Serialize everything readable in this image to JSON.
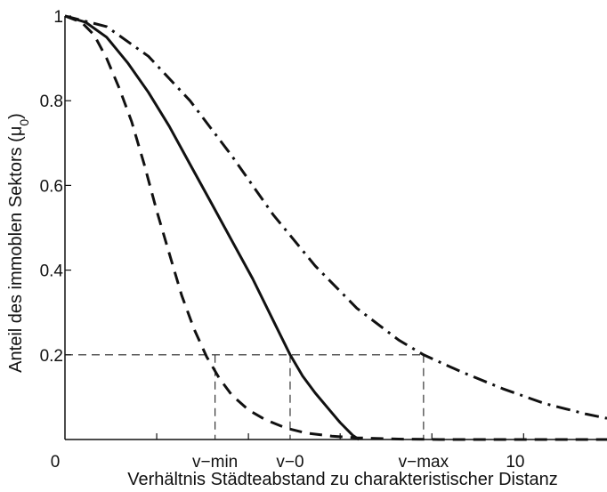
{
  "chart_data": {
    "type": "line",
    "title": "",
    "xlabel": "Verhältnis Städteabstand zu charakteristischer Distanz",
    "ylabel": "Anteil des immoblen Sektors (μ0)",
    "ylabel_main": "Anteil des immoblen Sektors (",
    "ylabel_symbol": "μ",
    "ylabel_sub": "0",
    "ylabel_close": ")",
    "xlim": [
      0,
      13
    ],
    "ylim": [
      0,
      1
    ],
    "grid": false,
    "legend": "none",
    "x_ticks": [
      {
        "x": 0,
        "label": "0"
      },
      {
        "x": 3.6,
        "label": "v−min"
      },
      {
        "x": 5.4,
        "label": "v−0"
      },
      {
        "x": 8.6,
        "label": "v−max"
      },
      {
        "x": 10.8,
        "label": "10"
      }
    ],
    "y_ticks": [
      {
        "y": 0.2,
        "label": "0.2"
      },
      {
        "y": 0.4,
        "label": "0.4"
      },
      {
        "y": 0.6,
        "label": "0.6"
      },
      {
        "y": 0.8,
        "label": "0.8"
      },
      {
        "y": 1.0,
        "label": "1"
      }
    ],
    "minor_ticks_x": [
      2.2,
      4.4,
      6.6,
      8.8,
      11.0
    ],
    "series": [
      {
        "style": "dashed",
        "x": [
          0,
          0.4,
          0.7,
          1.0,
          1.3,
          1.6,
          1.9,
          2.2,
          2.5,
          2.8,
          3.1,
          3.4,
          3.7,
          4.0,
          4.4,
          4.8,
          5.3,
          5.8,
          6.4,
          7.0,
          8.0,
          9.0,
          10.5,
          12.0,
          13.0
        ],
        "y": [
          1.0,
          0.985,
          0.955,
          0.9,
          0.83,
          0.75,
          0.65,
          0.54,
          0.44,
          0.34,
          0.26,
          0.195,
          0.145,
          0.105,
          0.07,
          0.047,
          0.027,
          0.015,
          0.008,
          0.004,
          0.001,
          0.0,
          0.0,
          0.0,
          0.0
        ]
      },
      {
        "style": "solid",
        "x": [
          0,
          0.5,
          1.0,
          1.5,
          2.0,
          2.5,
          3.0,
          3.5,
          4.0,
          4.5,
          5.0,
          5.4,
          5.7,
          6.0,
          6.3,
          6.6,
          6.9,
          7.05
        ],
        "y": [
          1.0,
          0.985,
          0.95,
          0.89,
          0.82,
          0.74,
          0.65,
          0.56,
          0.47,
          0.38,
          0.28,
          0.2,
          0.15,
          0.11,
          0.075,
          0.04,
          0.01,
          0.0
        ]
      },
      {
        "style": "dashdot",
        "x": [
          0,
          1.0,
          2.0,
          3.0,
          4.0,
          5.0,
          6.0,
          7.0,
          8.0,
          8.6,
          9.5,
          10.5,
          11.5,
          12.5,
          13.0
        ],
        "y": [
          1.0,
          0.975,
          0.905,
          0.8,
          0.67,
          0.53,
          0.41,
          0.31,
          0.235,
          0.2,
          0.16,
          0.12,
          0.085,
          0.06,
          0.05
        ]
      }
    ],
    "reference_lines": {
      "y_value": 0.2,
      "x_values": [
        3.6,
        5.4,
        8.6
      ],
      "style": "dashed"
    }
  }
}
